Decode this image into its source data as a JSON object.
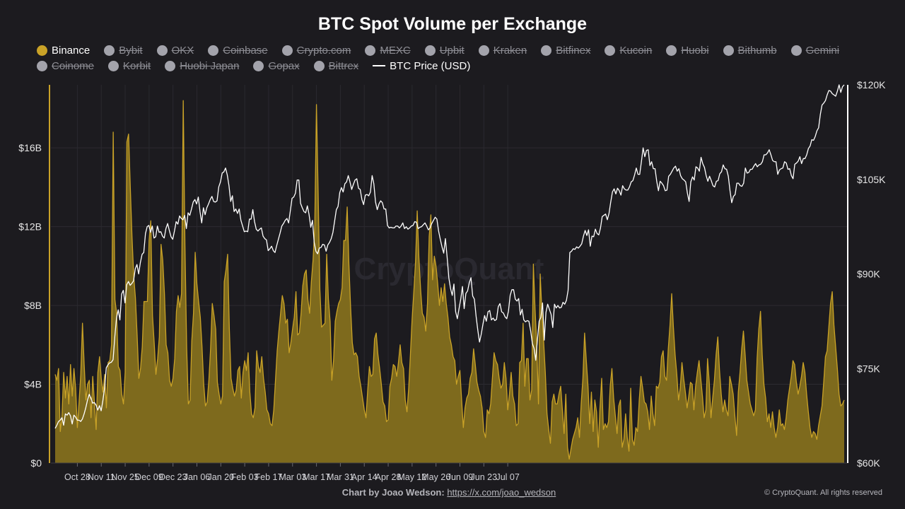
{
  "chart_data": {
    "type": "area",
    "title": "BTC Spot Volume per Exchange",
    "x_ticks": [
      "Oct 28",
      "Nov 11",
      "Nov 25",
      "Dec 09",
      "Dec 23",
      "Jan 06",
      "Jan 20",
      "Feb 03",
      "Feb 17",
      "Mar 03",
      "Mar 17",
      "Mar 31",
      "Apr 14",
      "Apr 28",
      "May 12",
      "May 26",
      "Jun 09",
      "Jun 23",
      "Jul 07"
    ],
    "y_left_ticks": [
      "$0",
      "$4B",
      "$8B",
      "$12B",
      "$16B"
    ],
    "y_left_range": [
      0,
      19.2
    ],
    "y_right_ticks": [
      "$60K",
      "$75K",
      "$90K",
      "$105K",
      "$120K"
    ],
    "y_right_range": [
      60000,
      120000
    ],
    "legend_position": "top",
    "grid": true,
    "series": [
      {
        "name": "Binance",
        "axis": "left",
        "color": "#c9a227",
        "unit": "billion USD",
        "x_start": "2024-10-15",
        "x_step_days": 1,
        "values": [
          4.5,
          4.2,
          4.8,
          1.6,
          2.4,
          4.6,
          3.3,
          4.4,
          3.0,
          5.0,
          3.4,
          4.8,
          3.8,
          1.8,
          3.1,
          4.5,
          7.1,
          5.0,
          3.2,
          4.0,
          4.2,
          2.3,
          4.4,
          3.1,
          1.7,
          4.6,
          5.4,
          4.3,
          3.6,
          4.5,
          2.8,
          5.1,
          5.2,
          6.0,
          16.8,
          8.3,
          7.6,
          4.9,
          4.7,
          3.5,
          3.0,
          4.6,
          16.3,
          16.7,
          14.0,
          11.5,
          9.5,
          8.4,
          6.5,
          4.3,
          4.8,
          5.9,
          8.2,
          8.2,
          8.2,
          11.3,
          12.3,
          7.5,
          6.1,
          4.5,
          5.3,
          6.4,
          11.1,
          10.3,
          8.6,
          6.0,
          5.6,
          4.2,
          3.9,
          4.3,
          5.3,
          7.7,
          8.5,
          7.9,
          8.6,
          18.4,
          11.1,
          5.9,
          3.0,
          3.2,
          6.2,
          7.6,
          10.7,
          9.1,
          8.2,
          7.4,
          5.9,
          4.0,
          2.9,
          3.1,
          4.2,
          5.8,
          8.1,
          7.5,
          6.8,
          4.1,
          3.5,
          3.0,
          3.4,
          9.2,
          9.8,
          10.6,
          6.8,
          4.3,
          3.8,
          3.4,
          3.7,
          4.7,
          4.9,
          3.3,
          4.6,
          5.2,
          4.7,
          5.6,
          3.6,
          2.5,
          2.3,
          2.8,
          5.7,
          4.9,
          4.6,
          5.4,
          4.3,
          3.6,
          2.7,
          2.5,
          2.0,
          1.9,
          2.7,
          4.2,
          5.7,
          6.7,
          7.6,
          8.5,
          8.1,
          7.1,
          7.3,
          5.6,
          6.1,
          6.8,
          7.4,
          8.7,
          6.5,
          6.6,
          7.6,
          9.0,
          9.6,
          9.8,
          8.3,
          7.6,
          9.2,
          10.3,
          12.0,
          18.2,
          13.7,
          8.8,
          6.9,
          7.0,
          7.1,
          10.6,
          8.3,
          7.2,
          4.2,
          5.2,
          7.2,
          7.7,
          8.1,
          8.3,
          8.9,
          11.3,
          11.3,
          13.0,
          10.1,
          7.9,
          6.1,
          5.5,
          5.6,
          5.4,
          4.4,
          3.9,
          3.3,
          2.7,
          2.3,
          3.7,
          4.9,
          4.4,
          4.5,
          6.3,
          6.6,
          5.5,
          4.8,
          4.0,
          3.1,
          2.9,
          2.1,
          2.2,
          3.9,
          4.3,
          5.0,
          4.9,
          4.4,
          5.1,
          6.0,
          5.1,
          4.8,
          3.2,
          2.6,
          3.8,
          5.5,
          7.3,
          8.7,
          10.2,
          12.8,
          10.4,
          8.8,
          7.6,
          7.4,
          6.7,
          8.1,
          11.5,
          12.6,
          9.3,
          10.5,
          10.0,
          9.1,
          8.0,
          8.9,
          8.2,
          9.1,
          8.1,
          7.4,
          6.4,
          6.0,
          5.4,
          5.2,
          4.0,
          4.4,
          4.7,
          3.2,
          1.8,
          2.8,
          3.3,
          3.5,
          4.3,
          4.6,
          5.8,
          5.0,
          4.1,
          3.7,
          3.4,
          2.8,
          1.6,
          1.3,
          2.7,
          2.5,
          3.0,
          4.3,
          5.6,
          5.2,
          5.0,
          4.3,
          3.8,
          4.0,
          5.1,
          4.3,
          2.7,
          3.5,
          4.6,
          3.4,
          3.0,
          1.9,
          2.0,
          5.1,
          5.2,
          7.1,
          3.9,
          5.3,
          5.3,
          3.2,
          3.7,
          10.1,
          7.8,
          6.0,
          3.0,
          9.6,
          7.7,
          6.2,
          4.6,
          2.5,
          1.7,
          1.0,
          3.1,
          3.5,
          3.0,
          3.0,
          3.5,
          3.9,
          2.7,
          1.5,
          3.5,
          0.8,
          0.2,
          0.7,
          1.2,
          1.5,
          1.8,
          2.3,
          1.3,
          3.0,
          4.3,
          6.6,
          5.2,
          3.9,
          2.0,
          3.6,
          1.6,
          3.2,
          2.6,
          0.8,
          2.8,
          4.3,
          1.7,
          2.0,
          1.8,
          2.1,
          3.9,
          4.8,
          3.3,
          2.4,
          1.5,
          2.9,
          3.2,
          0.8,
          1.2,
          2.5,
          1.3,
          0.6,
          3.8,
          1.2,
          0.9,
          1.8,
          1.6,
          3.2,
          4.4,
          3.8,
          3.1,
          3.0,
          2.6,
          1.7,
          3.4,
          2.5,
          1.9,
          3.9,
          3.8,
          4.1,
          5.4,
          5.7,
          4.4,
          4.2,
          5.8,
          7.0,
          8.6,
          6.9,
          5.5,
          4.5,
          3.2,
          3.8,
          5.1,
          4.3,
          3.6,
          2.8,
          3.4,
          4.1,
          4.0,
          2.7,
          3.9,
          4.6,
          5.2,
          4.3,
          3.4,
          2.3,
          2.7,
          5.3,
          4.1,
          2.3,
          3.3,
          4.2,
          5.5,
          6.4,
          4.7,
          3.5,
          2.6,
          3.2,
          2.7,
          2.4,
          4.4,
          4.0,
          3.5,
          2.4,
          1.4,
          3.6,
          4.6,
          5.8,
          6.7,
          5.5,
          4.2,
          3.6,
          3.0,
          2.7,
          2.4,
          2.7,
          5.3,
          6.8,
          7.7,
          5.5,
          4.0,
          3.3,
          2.1,
          2.5,
          1.8,
          2.6,
          1.8,
          1.3,
          1.8,
          2.7,
          1.9,
          2.0,
          1.7,
          2.3,
          3.2,
          3.8,
          4.4,
          5.2,
          5.0,
          4.1,
          3.5,
          3.9,
          4.4,
          5.1,
          4.6,
          3.5,
          2.6,
          1.8,
          1.3,
          1.6,
          1.5,
          1.2,
          1.9,
          2.4,
          2.9,
          4.1,
          5.4,
          5.7,
          6.9,
          8.1,
          8.7,
          7.0,
          5.9,
          4.8,
          3.5,
          2.9,
          3.0,
          3.2
        ]
      },
      {
        "name": "BTC Price (USD)",
        "axis": "right",
        "color": "#ffffff",
        "unit": "USD",
        "values": [
          65500,
          66000,
          66600,
          66800,
          67200,
          66000,
          67800,
          67600,
          68000,
          67500,
          66200,
          67600,
          67300,
          66800,
          66800,
          66600,
          67000,
          67800,
          68800,
          70000,
          70900,
          70300,
          69500,
          69600,
          69200,
          68400,
          69100,
          68300,
          69900,
          71900,
          75100,
          75600,
          75900,
          76000,
          76400,
          80000,
          83000,
          84300,
          82700,
          86800,
          87400,
          85400,
          88300,
          88800,
          88200,
          88500,
          88900,
          90800,
          91500,
          90000,
          91800,
          93100,
          93400,
          96400,
          97500,
          97700,
          96600,
          97600,
          95700,
          95900,
          97600,
          96600,
          96700,
          96000,
          95700,
          97200,
          98000,
          96900,
          95900,
          95500,
          96800,
          98300,
          97900,
          99200,
          98800,
          98600,
          99300,
          97200,
          99700,
          99300,
          100300,
          101400,
          101800,
          101100,
          102200,
          99900,
          98100,
          100500,
          99400,
          100500,
          101100,
          101800,
          102300,
          101500,
          101400,
          101600,
          103800,
          104600,
          106000,
          106200,
          106800,
          105700,
          104000,
          101500,
          102400,
          99900,
          100300,
          99600,
          100300,
          98500,
          97600,
          96700,
          96800,
          96700,
          98700,
          98700,
          100200,
          98300,
          97100,
          96800,
          97100,
          97300,
          96000,
          95600,
          95400,
          93700,
          94000,
          94400,
          93700,
          93400,
          94500,
          95500,
          96500,
          97600,
          98000,
          98500,
          98800,
          98100,
          100000,
          102000,
          102200,
          102800,
          104900,
          104900,
          101200,
          100500,
          99900,
          99700,
          100800,
          99400,
          97400,
          98500,
          95000,
          93600,
          93200,
          94100,
          94200,
          94700,
          94600,
          93600,
          94600,
          95000,
          95600,
          96600,
          98400,
          100200,
          100700,
          102900,
          103700,
          103000,
          104300,
          104600,
          105600,
          104600,
          103400,
          104200,
          104900,
          105100,
          103600,
          103400,
          101800,
          101000,
          102500,
          102600,
          102400,
          103000,
          105600,
          104300,
          101400,
          100200,
          101100,
          101600,
          101300,
          100300,
          100300,
          97700,
          97300,
          97400,
          97300,
          97300,
          97600,
          97600,
          97300,
          97600,
          98100,
          97200,
          97500,
          97100,
          97300,
          97600,
          97700,
          98300,
          98200,
          97200,
          97400,
          97500,
          97800,
          98100,
          97600,
          97000,
          97300,
          98000,
          98500,
          99000,
          98700,
          96800,
          95500,
          94300,
          93300,
          95600,
          92700,
          89400,
          87700,
          86600,
          88400,
          84000,
          82900,
          84500,
          86000,
          88000,
          84500,
          86900,
          87300,
          88600,
          89400,
          86500,
          86000,
          83300,
          81100,
          79200,
          80400,
          82000,
          83400,
          82500,
          84000,
          84200,
          82700,
          83000,
          82600,
          82800,
          84800,
          85300,
          84000,
          83800,
          83200,
          82900,
          84100,
          86600,
          87500,
          87500,
          86000,
          85700,
          86100,
          83500,
          84400,
          82700,
          82400,
          82600,
          82500,
          81000,
          79000,
          78200,
          76300,
          79600,
          82500,
          83100,
          85400,
          79500,
          83900,
          85200,
          84400,
          83600,
          81500,
          85200,
          84600,
          85000,
          84600,
          84700,
          85500,
          85200,
          85800,
          87400,
          93400,
          93600,
          94000,
          93900,
          94300,
          94100,
          94400,
          94800,
          96000,
          96900,
          96100,
          97000,
          94400,
          96000,
          95900,
          97100,
          96400,
          96200,
          97300,
          99100,
          99300,
          99500,
          98600,
          99600,
          101400,
          103000,
          103500,
          102700,
          103600,
          103200,
          102500,
          104000,
          103500,
          103300,
          103300,
          103800,
          104600,
          104800,
          105700,
          106800,
          105800,
          105800,
          107800,
          110000,
          108600,
          109600,
          109700,
          107200,
          107800,
          106700,
          106700,
          104700,
          103200,
          104700,
          104400,
          104000,
          103200,
          103300,
          105500,
          105800,
          106300,
          106800,
          107100,
          106300,
          106700,
          105600,
          105100,
          104900,
          104600,
          102800,
          101500,
          104600,
          105400,
          104900,
          107000,
          106800,
          106300,
          108500,
          107500,
          106900,
          105600,
          104700,
          105500,
          104800,
          104000,
          103800,
          104700,
          104800,
          105900,
          106200,
          107300,
          106700,
          106600,
          105500,
          103200,
          101300,
          102300,
          102600,
          104400,
          104400,
          104000,
          103900,
          104400,
          106800,
          106000,
          106100,
          106600,
          106600,
          107100,
          107500,
          107000,
          107300,
          107400,
          107800,
          108900,
          108900,
          109200,
          109700,
          108900,
          108000,
          107800,
          107800,
          105800,
          106500,
          106700,
          106800,
          107800,
          107600,
          106600,
          106700,
          105600,
          105100,
          107400,
          107600,
          107900,
          108600,
          107500,
          108300,
          108300,
          108900,
          109900,
          110300,
          111300,
          111200,
          111800,
          112700,
          113200,
          115300,
          116800,
          117100,
          117500,
          118400,
          119100,
          119000,
          118600,
          118400,
          118200,
          119000,
          120000,
          118800,
          119700,
          120000
        ]
      }
    ]
  },
  "legend": {
    "items": [
      {
        "label": "Binance",
        "color": "#c9a227",
        "hidden": false
      },
      {
        "label": "Bybit",
        "color": "#a3a3ab",
        "hidden": true
      },
      {
        "label": "OKX",
        "color": "#a3a3ab",
        "hidden": true
      },
      {
        "label": "Coinbase",
        "color": "#a3a3ab",
        "hidden": true
      },
      {
        "label": "Crypto.com",
        "color": "#a3a3ab",
        "hidden": true
      },
      {
        "label": "MEXC",
        "color": "#a3a3ab",
        "hidden": true
      },
      {
        "label": "Upbit",
        "color": "#a3a3ab",
        "hidden": true
      },
      {
        "label": "Kraken",
        "color": "#a3a3ab",
        "hidden": true
      },
      {
        "label": "Bitfinex",
        "color": "#a3a3ab",
        "hidden": true
      },
      {
        "label": "Kucoin",
        "color": "#a3a3ab",
        "hidden": true
      },
      {
        "label": "Huobi",
        "color": "#a3a3ab",
        "hidden": true
      },
      {
        "label": "Bithumb",
        "color": "#a3a3ab",
        "hidden": true
      },
      {
        "label": "Gemini",
        "color": "#a3a3ab",
        "hidden": true
      },
      {
        "label": "Coinome",
        "color": "#a3a3ab",
        "hidden": true
      },
      {
        "label": "Korbit",
        "color": "#a3a3ab",
        "hidden": true
      },
      {
        "label": "Huobi Japan",
        "color": "#a3a3ab",
        "hidden": true
      },
      {
        "label": "Gopax",
        "color": "#a3a3ab",
        "hidden": true
      },
      {
        "label": "Bittrex",
        "color": "#a3a3ab",
        "hidden": true
      }
    ],
    "price_label": "BTC Price (USD)"
  },
  "watermark": "CryptoQuant",
  "footer": {
    "credit_prefix": "Chart by Joao Wedson:",
    "credit_link": "https://x.com/joao_wedson",
    "copyright": "© CryptoQuant. All rights reserved"
  }
}
